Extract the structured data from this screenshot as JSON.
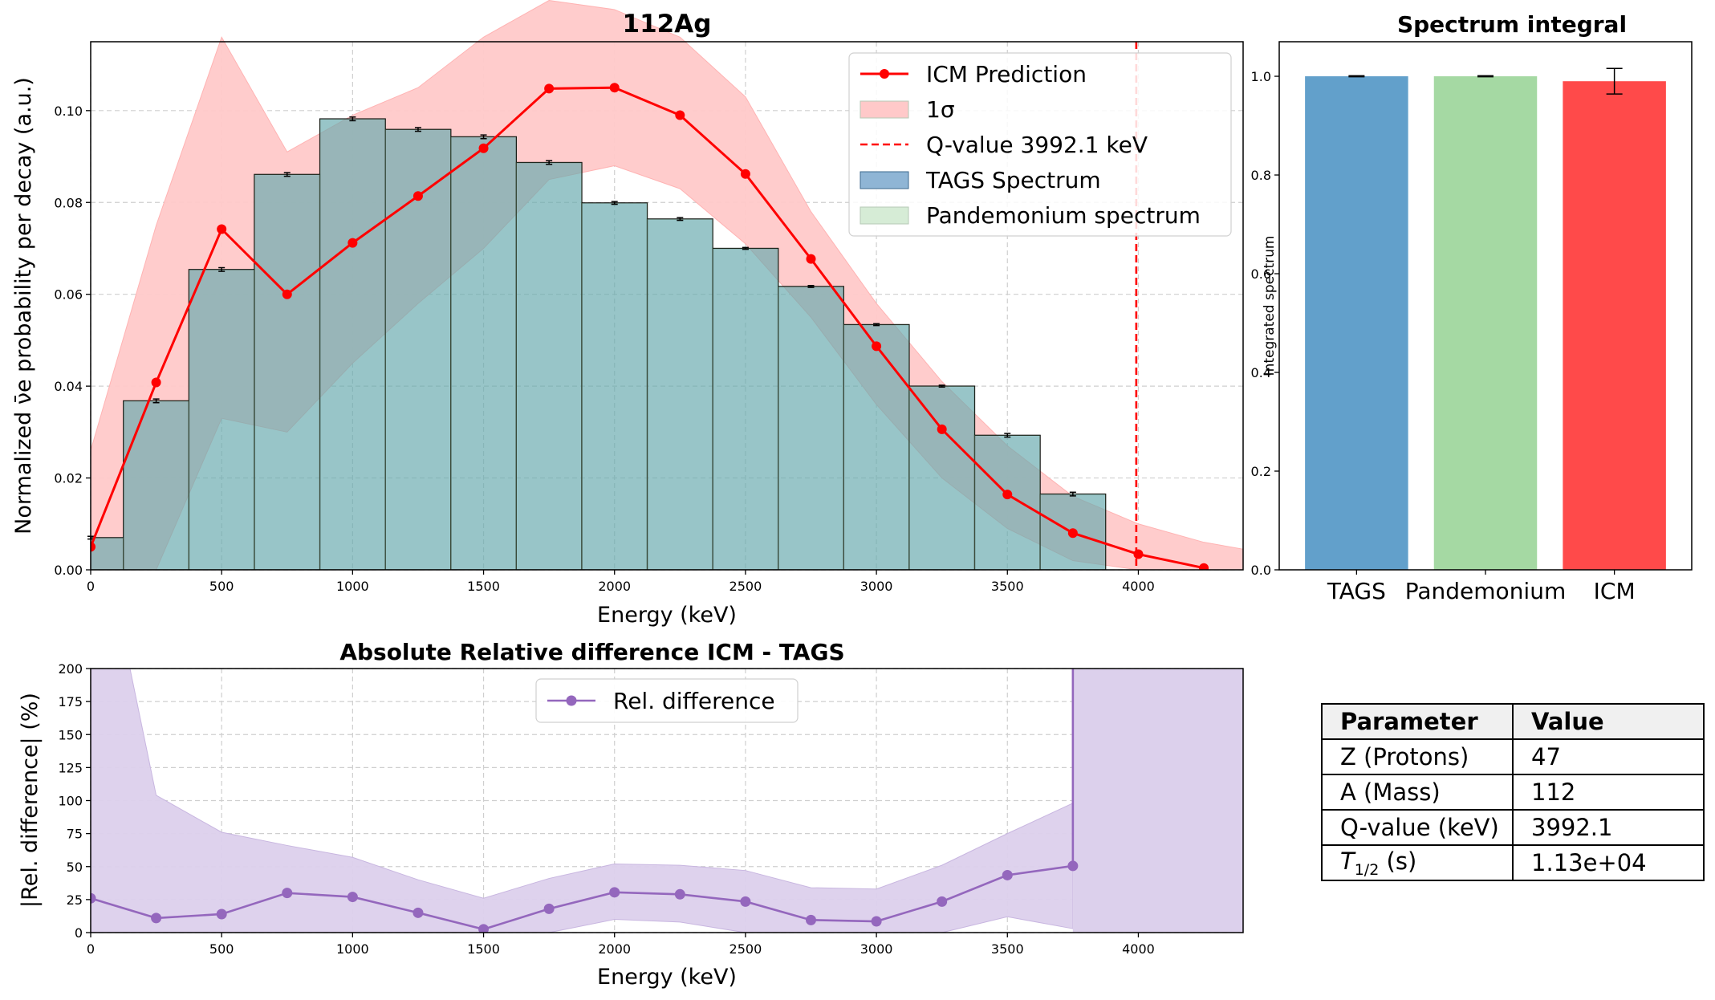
{
  "chart_data": [
    {
      "id": "main",
      "type": "bar+line",
      "title": "112Ag",
      "xlabel": "Energy (keV)",
      "ylabel": "Normalized ν̄e probability per decay (a.u.)",
      "xlim": [
        0,
        4400
      ],
      "ylim": [
        0,
        0.115
      ],
      "xticks": [
        0,
        500,
        1000,
        1500,
        2000,
        2500,
        3000,
        3500,
        4000
      ],
      "yticks": [
        0.0,
        0.02,
        0.04,
        0.06,
        0.08,
        0.1
      ],
      "ytick_labels": [
        "0.00",
        "0.02",
        "0.04",
        "0.06",
        "0.08",
        "0.10"
      ],
      "grid": true,
      "legend_position": "top-right",
      "bin_centers": [
        0,
        250,
        500,
        750,
        1000,
        1250,
        1500,
        1750,
        2000,
        2250,
        2500,
        2750,
        3000,
        3250,
        3500,
        3750
      ],
      "bin_width": 250,
      "tags_values": [
        0.007,
        0.0368,
        0.0654,
        0.0861,
        0.0982,
        0.0959,
        0.0943,
        0.0887,
        0.0799,
        0.0764,
        0.07,
        0.0617,
        0.0534,
        0.04,
        0.0293,
        0.0165
      ],
      "tags_errors": [
        0.0003,
        0.0004,
        0.0004,
        0.0004,
        0.0004,
        0.0004,
        0.0004,
        0.0004,
        0.0003,
        0.0003,
        0.0002,
        0.0002,
        0.0002,
        0.0002,
        0.0004,
        0.0004
      ],
      "pandemonium_values": [
        0.007,
        0.0368,
        0.0654,
        0.0861,
        0.0982,
        0.0959,
        0.0943,
        0.0887,
        0.0799,
        0.0764,
        0.07,
        0.0617,
        0.0534,
        0.04,
        0.0293,
        0.0165
      ],
      "icm_x": [
        0,
        250,
        500,
        750,
        1000,
        1250,
        1500,
        1750,
        2000,
        2250,
        2500,
        2750,
        3000,
        3250,
        3500,
        3750,
        4000,
        4250
      ],
      "icm_values": [
        0.005,
        0.0408,
        0.0742,
        0.06,
        0.0712,
        0.0814,
        0.0918,
        0.1048,
        0.105,
        0.099,
        0.0862,
        0.0677,
        0.0487,
        0.0306,
        0.0164,
        0.008,
        0.0034,
        0.0004
      ],
      "icm_sigma_upper": [
        0.026,
        0.075,
        0.116,
        0.091,
        0.099,
        0.105,
        0.116,
        0.124,
        0.122,
        0.116,
        0.103,
        0.078,
        0.058,
        0.041,
        0.027,
        0.016,
        0.01,
        0.006,
        0.0045
      ],
      "icm_sigma_lower": [
        0.0,
        0.0,
        0.033,
        0.03,
        0.045,
        0.058,
        0.07,
        0.085,
        0.088,
        0.083,
        0.071,
        0.055,
        0.036,
        0.02,
        0.009,
        0.002,
        0.0,
        0.0,
        0.0
      ],
      "icm_sigma_x": [
        0,
        250,
        500,
        750,
        1000,
        1250,
        1500,
        1750,
        2000,
        2250,
        2500,
        2750,
        3000,
        3250,
        3500,
        3750,
        4000,
        4250,
        4400
      ],
      "q_value": 3992.1,
      "legend": [
        {
          "label": "ICM Prediction",
          "kind": "line-marker",
          "color": "#ff0000"
        },
        {
          "label": "1σ",
          "kind": "patch",
          "color": "#ffc9c9"
        },
        {
          "label": "Q-value 3992.1 keV",
          "kind": "dashed",
          "color": "#ff0000"
        },
        {
          "label": "TAGS Spectrum",
          "kind": "patch",
          "color": "#8fb5d5"
        },
        {
          "label": "Pandemonium spectrum",
          "kind": "patch",
          "color": "#d6ecd6"
        }
      ]
    },
    {
      "id": "integral",
      "type": "bar",
      "title": "Spectrum integral",
      "ylabel": "Integrated spectrum",
      "categories": [
        "TAGS",
        "Pandemonium",
        "ICM"
      ],
      "values": [
        1.0,
        1.0,
        0.99
      ],
      "errors": [
        0.001,
        0.001,
        0.026
      ],
      "colors": [
        "#62a0cb",
        "#a5d9a3",
        "#ff4a4a"
      ],
      "ylim": [
        0,
        1.07
      ],
      "yticks": [
        0.0,
        0.2,
        0.4,
        0.6,
        0.8,
        1.0
      ],
      "ytick_labels": [
        "0.0",
        "0.2",
        "0.4",
        "0.6",
        "0.8",
        "1.0"
      ]
    },
    {
      "id": "reldiff",
      "type": "line",
      "title": "Absolute Relative difference ICM - TAGS",
      "xlabel": "Energy (keV)",
      "ylabel": "|Rel. difference| (%)",
      "xlim": [
        0,
        4400
      ],
      "ylim": [
        0,
        200
      ],
      "xticks": [
        0,
        500,
        1000,
        1500,
        2000,
        2500,
        3000,
        3500,
        4000
      ],
      "yticks": [
        0,
        25,
        50,
        75,
        100,
        125,
        150,
        175,
        200
      ],
      "grid": true,
      "legend_position": "top-center",
      "x": [
        0,
        250,
        500,
        750,
        1000,
        1250,
        1500,
        1750,
        2000,
        2250,
        2500,
        2750,
        3000,
        3250,
        3500,
        3750
      ],
      "values": [
        26,
        11,
        14,
        30,
        27,
        15,
        2.5,
        18,
        30.5,
        29,
        23.5,
        9.5,
        8.5,
        23.5,
        43.5,
        50.5
      ],
      "band_upper": [
        200,
        104,
        76,
        66,
        57,
        40,
        26,
        41,
        52,
        51,
        47,
        34,
        33,
        51,
        75,
        98
      ],
      "band_lower": [
        0,
        0,
        0,
        0,
        0,
        0,
        0,
        0,
        10,
        8,
        0,
        0,
        0,
        0,
        12,
        3
      ],
      "band_x": [
        0,
        250,
        500,
        750,
        1000,
        1250,
        1500,
        1750,
        2000,
        2250,
        2500,
        2750,
        3000,
        3250,
        3500,
        3750
      ],
      "color": "#9467bd",
      "band_color": "#dcd0ec",
      "legend": [
        {
          "label": "Rel. difference"
        }
      ]
    }
  ],
  "table": {
    "headers": [
      "Parameter",
      "Value"
    ],
    "rows": [
      {
        "param": "Z (Protons)",
        "value": "47"
      },
      {
        "param": "A (Mass)",
        "value": "112"
      },
      {
        "param": "Q-value (keV)",
        "value": "3992.1"
      },
      {
        "param_main": "T",
        "param_sub": "1/2",
        "param_suffix": " (s)",
        "value": "1.13e+04"
      }
    ]
  }
}
